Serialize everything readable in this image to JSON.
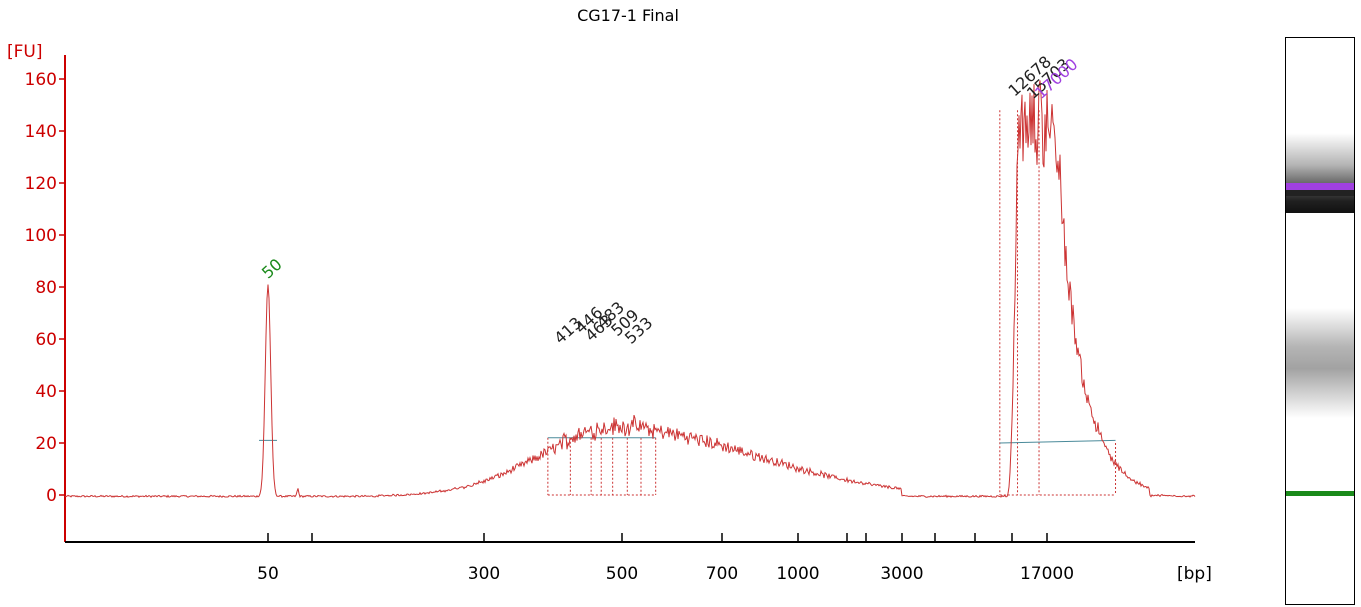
{
  "chart_data": {
    "type": "line",
    "title": "CG17-1 Final",
    "ylabel": "[FU]",
    "xlabel": "[bp]",
    "ylim": [
      -18,
      165
    ],
    "y_ticks": [
      0,
      20,
      40,
      60,
      80,
      100,
      120,
      140,
      160
    ],
    "x_tick_labels": [
      "50",
      "300",
      "500",
      "700",
      "1000",
      "3000",
      "17000"
    ],
    "x_scale": "sizing-ladder (non-linear)",
    "baseline_fu": -0.5,
    "marker_peak": {
      "label": "50",
      "size_bp": 50,
      "height_fu": 81,
      "color": "#1a8a1a"
    },
    "upper_marker": {
      "label": "17000",
      "size_bp": 17000,
      "color": "#a040e0"
    },
    "series": [
      {
        "color": "#cc3333",
        "peaks": [
          {
            "label": "413",
            "size_bp": 413,
            "height_fu": 27
          },
          {
            "label": "446",
            "size_bp": 446,
            "height_fu": 28
          },
          {
            "label": "463",
            "size_bp": 463,
            "height_fu": 27
          },
          {
            "label": "483",
            "size_bp": 483,
            "height_fu": 29
          },
          {
            "label": "509",
            "size_bp": 509,
            "height_fu": 28
          },
          {
            "label": "533",
            "size_bp": 533,
            "height_fu": 27
          },
          {
            "label": "12678",
            "size_bp": 12678,
            "height_fu": 148
          },
          {
            "label": "15703",
            "size_bp": 15703,
            "height_fu": 150
          }
        ],
        "broad_hump": {
          "range_bp": [
            150,
            3000
          ],
          "max_fu": 26
        },
        "hmw_region": {
          "range_bp": [
            10000,
            30000
          ],
          "max_fu": 155
        }
      }
    ]
  },
  "colors": {
    "axis": "#cc0000",
    "trace": "#cc3333",
    "baseline_marker": "#4a8a9a",
    "marker_green": "#1a8a1a",
    "marker_purple": "#a040e0"
  }
}
